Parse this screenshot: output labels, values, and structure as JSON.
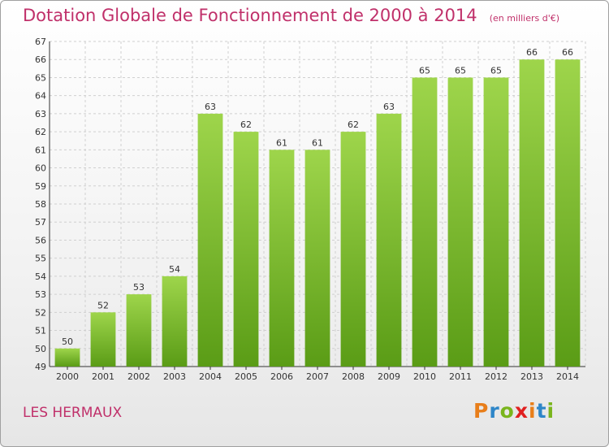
{
  "title": "Dotation Globale de Fonctionnement de 2000 à 2014",
  "unit_note": "(en milliers d'€)",
  "commune": "LES HERMAUX",
  "brand": {
    "letters": [
      "P",
      "r",
      "o",
      "x",
      "i",
      "t",
      "i"
    ],
    "colors": [
      "#e87e1a",
      "#2e86c8",
      "#7ab51d",
      "#e02020",
      "#e87e1a",
      "#2e86c8",
      "#7ab51d"
    ]
  },
  "colors": {
    "bar_top": "#9ed54b",
    "bar_bottom": "#5a9c16",
    "title": "#c0306a"
  },
  "chart_data": {
    "type": "bar",
    "title": "Dotation Globale de Fonctionnement de 2000 à 2014",
    "subtitle": "(en milliers d'€)",
    "xlabel": "",
    "ylabel": "",
    "categories": [
      "2000",
      "2001",
      "2002",
      "2003",
      "2004",
      "2005",
      "2006",
      "2007",
      "2008",
      "2009",
      "2010",
      "2011",
      "2012",
      "2013",
      "2014"
    ],
    "values": [
      50,
      52,
      53,
      54,
      63,
      62,
      61,
      61,
      62,
      63,
      65,
      65,
      65,
      66,
      66
    ],
    "ylim": [
      49,
      67
    ],
    "yticks": [
      49,
      50,
      51,
      52,
      53,
      54,
      55,
      56,
      57,
      58,
      59,
      60,
      61,
      62,
      63,
      64,
      65,
      66,
      67
    ],
    "grid": true,
    "legend": "none"
  }
}
